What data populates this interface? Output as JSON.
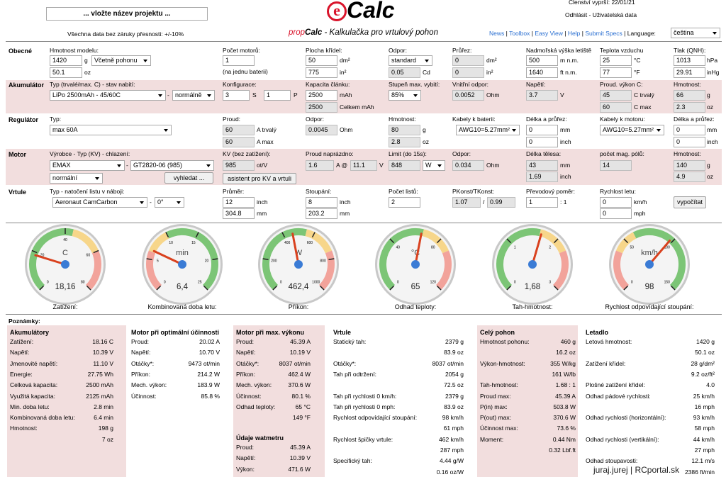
{
  "header": {
    "project_name": "... vložte název projektu ...",
    "disclaimer": "Všechna data bez záruky přesnosti: +/-10%",
    "logo_e": "e",
    "logo_calc": "Calc",
    "subtitle_prop": "prop",
    "subtitle_calc": "Calc",
    "subtitle_rest": " - Kalkulačka pro vrtulový pohon",
    "member": "Členství vyprší: 22/01/21",
    "user_links": "Odhlásit - Uživatelská data",
    "nav": [
      "News",
      "Toolbox",
      "Easy View",
      "Help",
      "Submit Specs"
    ],
    "nav_sep": "|",
    "language_label": "Language:",
    "language_value": "čeština"
  },
  "general": {
    "title": "Obecné",
    "mass_label": "Hmotnost modelu:",
    "mass_g": "1420",
    "mass_unit_g": "g",
    "mass_mode": "Včetně pohonu",
    "mass_oz": "50.1",
    "mass_unit_oz": "oz",
    "motors_label": "Počet motorů:",
    "motors": "1",
    "motors_note": "(na jednu baterii)",
    "wing_label": "Plocha křídel:",
    "wing_dm": "50",
    "wing_unit_dm": "dm²",
    "wing_in": "775",
    "wing_unit_in": "in²",
    "drag_label": "Odpor:",
    "drag_mode": "standard",
    "drag_cd": "0.05",
    "drag_unit": "Cd",
    "cross_label": "Průřez:",
    "cross_dm": "0",
    "cross_unit_dm": "dm²",
    "cross_in": "0",
    "cross_unit_in": "in²",
    "alt_label": "Nadmořská výška letiště",
    "alt_m": "500",
    "alt_unit_m": "m n.m.",
    "alt_ft": "1640",
    "alt_unit_ft": "ft n.m.",
    "temp_label": "Teplota vzduchu",
    "temp_c": "25",
    "temp_unit_c": "°C",
    "temp_f": "77",
    "temp_unit_f": "°F",
    "press_label": "Tlak (QNH):",
    "press_hpa": "1013",
    "press_unit_hpa": "hPa",
    "press_inhg": "29.91",
    "press_unit_inhg": "inHg"
  },
  "battery": {
    "title": "Akumulátor",
    "type_label": "Typ (trvalé/max. C) - stav nabití:",
    "type": "LiPo 2500mAh - 45/60C",
    "dash": "-",
    "state": "normálně",
    "config_label": "Konfigurace:",
    "cfg_s": "3",
    "cfg_s_unit": "S",
    "cfg_p": "1",
    "cfg_p_unit": "P",
    "cap_label": "Kapacita článku:",
    "cap": "2500",
    "cap_unit": "mAh",
    "cap_total": "2500",
    "cap_total_unit": "Celkem mAh",
    "dis_label": "Stupeň max. vybití:",
    "dis": "85%",
    "ir_label": "Vnitřní odpor:",
    "ir": "0.0052",
    "ir_unit": "Ohm",
    "volt_label": "Napětí:",
    "volt": "3.7",
    "volt_unit": "V",
    "c_label": "Proud. výkon C:",
    "c_cont": "45",
    "c_cont_unit": "C trvalý",
    "c_max": "60",
    "c_max_unit": "C max",
    "w_label": "Hmotnost:",
    "w_g": "66",
    "w_unit_g": "g",
    "w_oz": "2.3",
    "w_unit_oz": "oz"
  },
  "controller": {
    "title": "Regulátor",
    "type_label": "Typ:",
    "type": "max 60A",
    "cur_label": "Proud:",
    "cur_cont": "60",
    "cur_cont_unit": "A trvalý",
    "cur_max": "60",
    "cur_max_unit": "A max",
    "res_label": "Odpor:",
    "res": "0.0045",
    "res_unit": "Ohm",
    "w_label": "Hmotnost:",
    "w_g": "80",
    "w_unit_g": "g",
    "w_oz": "2.8",
    "w_unit_oz": "oz",
    "bat_cable_label": "Kabely k baterii:",
    "bat_cable": "AWG10=5.27mm²",
    "bat_len_label": "Délka a průřez:",
    "bat_len_mm": "0",
    "bat_len_unit_mm": "mm",
    "bat_len_in": "0",
    "bat_len_unit_in": "inch",
    "mot_cable_label": "Kabely k motoru:",
    "mot_cable": "AWG10=5.27mm²",
    "mot_len_label": "Délka a průřez:",
    "mot_len_mm": "0",
    "mot_len_unit_mm": "mm",
    "mot_len_in": "0",
    "mot_len_unit_in": "inch"
  },
  "motor": {
    "title": "Motor",
    "type_label": "Výrobce - Typ (KV) - chlazení:",
    "maker": "EMAX",
    "dash": "-",
    "model": "GT2820-06 (985)",
    "cooling": "normální",
    "search": "vyhledat ...",
    "kv_label": "KV (bez zatížení):",
    "kv": "985",
    "kv_unit": "ot/V",
    "assist": "asistent pro KV a vrtuli",
    "i0_label": "Proud naprázdno:",
    "i0": "1.6",
    "i0_unit": "A @",
    "i0_v": "11.1",
    "i0_v_unit": "V",
    "lim_label": "Limit (do 15s):",
    "lim": "848",
    "lim_unit": "W",
    "res_label": "Odpor:",
    "res": "0.034",
    "res_unit": "Ohm",
    "len_label": "Délka tělesa:",
    "len_mm": "43",
    "len_unit_mm": "mm",
    "len_in": "1.69",
    "len_unit_in": "inch",
    "poles_label": "počet mag. pólů:",
    "poles": "14",
    "w_label": "Hmotnost:",
    "w_g": "140",
    "w_unit_g": "g",
    "w_oz": "4.9",
    "w_unit_oz": "oz"
  },
  "prop": {
    "title": "Vrtule",
    "type_label": "Typ - natočení listu v náboji:",
    "type": "Aeronaut CamCarbon",
    "dash": "-",
    "pitch_angle": "0°",
    "dia_label": "Průměr:",
    "dia_in": "12",
    "dia_unit_in": "inch",
    "dia_mm": "304.8",
    "dia_unit_mm": "mm",
    "pitch_label": "Stoupání:",
    "pitch_in": "8",
    "pitch_unit_in": "inch",
    "pitch_mm": "203.2",
    "pitch_unit_mm": "mm",
    "blades_label": "Počet listů:",
    "blades": "2",
    "pk_label": "PKonst/TKonst:",
    "pk": "1.07",
    "pk_sep": "/",
    "tk": "0.99",
    "gear_label": "Převodový poměr:",
    "gear": "1",
    "gear_unit": ": 1",
    "speed_label": "Rychlost letu:",
    "speed_kmh": "0",
    "speed_unit_kmh": "km/h",
    "speed_mph": "0",
    "speed_unit_mph": "mph",
    "calc": "vypočítat"
  },
  "gauges": [
    {
      "unit": "C",
      "value": "18,16",
      "label": "Zatížení:",
      "ticks": [
        "0",
        "20",
        "40",
        "60",
        "80"
      ],
      "needle_frac": 0.23
    },
    {
      "unit": "min",
      "value": "6,4",
      "label": "Kombinovaná doba letu:",
      "ticks": [
        "0",
        "5",
        "10",
        "15",
        "20",
        "25"
      ],
      "needle_frac": 0.26
    },
    {
      "unit": "W",
      "value": "462,4",
      "label": "Příkon:",
      "ticks": [
        "0",
        "200",
        "400",
        "600",
        "800",
        "1000"
      ],
      "needle_frac": 0.46
    },
    {
      "unit": "°C",
      "value": "65",
      "label": "Odhad teploty:",
      "ticks": [
        "0",
        "40",
        "80",
        "120"
      ],
      "needle_frac": 0.54
    },
    {
      "unit": "",
      "value": "1,68",
      "label": "Tah-hmotnost:",
      "ticks": [
        "0",
        "1",
        "2",
        "3"
      ],
      "needle_frac": 0.56
    },
    {
      "unit": "km/h",
      "value": "98",
      "label": "Rychlost odpovídající stoupání:",
      "ticks": [
        "0",
        "50",
        "100",
        "150"
      ],
      "needle_frac": 0.65
    }
  ],
  "notes_label": "Poznámky:",
  "results": {
    "battery": {
      "title": "Akumulátory",
      "rows": [
        [
          "Zatížení:",
          "18.16 C"
        ],
        [
          "Napětí:",
          "10.39 V"
        ],
        [
          "Jmenovité napětí:",
          "11.10 V"
        ],
        [
          "Energie:",
          "27.75 Wh"
        ],
        [
          "Celková kapacita:",
          "2500 mAh"
        ],
        [
          "Využitá kapacita:",
          "2125 mAh"
        ],
        [
          "Min. doba letu:",
          "2.8 min"
        ],
        [
          "Kombinovaná doba letu:",
          "6.4 min"
        ],
        [
          "Hmotnost:",
          "198 g"
        ],
        [
          "",
          "7 oz"
        ]
      ]
    },
    "motor_opt": {
      "title": "Motor při optimální účinnosti",
      "rows": [
        [
          "Proud:",
          "20.02 A"
        ],
        [
          "Napětí:",
          "10.70 V"
        ],
        [
          "Otáčky*:",
          "9473 ot/min"
        ],
        [
          "Příkon:",
          "214.2 W"
        ],
        [
          "Mech. výkon:",
          "183.9 W"
        ],
        [
          "Účinnost:",
          "85.8 %"
        ]
      ]
    },
    "motor_max": {
      "title": "Motor při max. výkonu",
      "rows": [
        [
          "Proud:",
          "45.39 A"
        ],
        [
          "Napětí:",
          "10.19 V"
        ],
        [
          "Otáčky*:",
          "8037 ot/min"
        ],
        [
          "Příkon:",
          "462.4 W"
        ],
        [
          "Mech. výkon:",
          "370.6 W"
        ],
        [
          "Účinnost:",
          "80.1 %"
        ],
        [
          "Odhad teploty:",
          "65 °C"
        ],
        [
          "",
          "149 °F"
        ]
      ]
    },
    "wattmeter": {
      "title": "Údaje watmetru",
      "rows": [
        [
          "Proud:",
          "45.39 A"
        ],
        [
          "Napětí:",
          "10.39 V"
        ],
        [
          "Výkon:",
          "471.6 W"
        ]
      ]
    },
    "prop": {
      "title": "Vrtule",
      "rows": [
        [
          "Statický tah:",
          "2379 g"
        ],
        [
          "",
          "83.9 oz"
        ],
        [
          "Otáčky*:",
          "8037 ot/min"
        ],
        [
          "Tah při odtržení:",
          "2054 g"
        ],
        [
          "",
          "72.5 oz"
        ],
        [
          "Tah při rychlosti 0 km/h:",
          "2379 g"
        ],
        [
          "Tah při rychlosti 0 mph:",
          "83.9 oz"
        ],
        [
          "Rychlost odpovídající stoupání:",
          "98 km/h"
        ],
        [
          "",
          "61 mph"
        ],
        [
          "Rychlost špičky vrtule:",
          "462 km/h"
        ],
        [
          "",
          "287 mph"
        ],
        [
          "Specifický tah:",
          "4.44 g/W"
        ],
        [
          "",
          "0.16 oz/W"
        ]
      ]
    },
    "drive": {
      "title": "Celý pohon",
      "rows": [
        [
          "Hmotnost pohonu:",
          "460 g"
        ],
        [
          "",
          "16.2 oz"
        ],
        [
          "Výkon-hmotnost:",
          "355 W/kg"
        ],
        [
          "",
          "161 W/lb"
        ],
        [
          "Tah-hmotnost:",
          "1.68 : 1"
        ],
        [
          "Proud max:",
          "45.39 A"
        ],
        [
          "P(in) max:",
          "503.8 W"
        ],
        [
          "P(out) max:",
          "370.6 W"
        ],
        [
          "Účinnost max:",
          "73.6 %"
        ],
        [
          "Moment:",
          "0.44 Nm"
        ],
        [
          "",
          "0.32 Lbf.ft"
        ]
      ]
    },
    "plane": {
      "title": "Letadlo",
      "rows": [
        [
          "Letová hmotnost:",
          "1420 g"
        ],
        [
          "",
          "50.1 oz"
        ],
        [
          "Zatížení křídel:",
          "28 g/dm²"
        ],
        [
          "",
          "9.2 oz/ft²"
        ],
        [
          "Plošné zatížení křídel:",
          "4.0"
        ],
        [
          "Odhad pádové rychlosti:",
          "25 km/h"
        ],
        [
          "",
          "16 mph"
        ],
        [
          "Odhad rychlosti (horizontální):",
          "93 km/h"
        ],
        [
          "",
          "58 mph"
        ],
        [
          "Odhad rychlosti (vertikální):",
          "44 km/h"
        ],
        [
          "",
          "27 mph"
        ],
        [
          "Odhad stoupavosti:",
          "12.1 m/s"
        ],
        [
          "",
          "2386 ft/min"
        ]
      ]
    }
  },
  "watermark": "juraj.jurej | RCportal.sk"
}
